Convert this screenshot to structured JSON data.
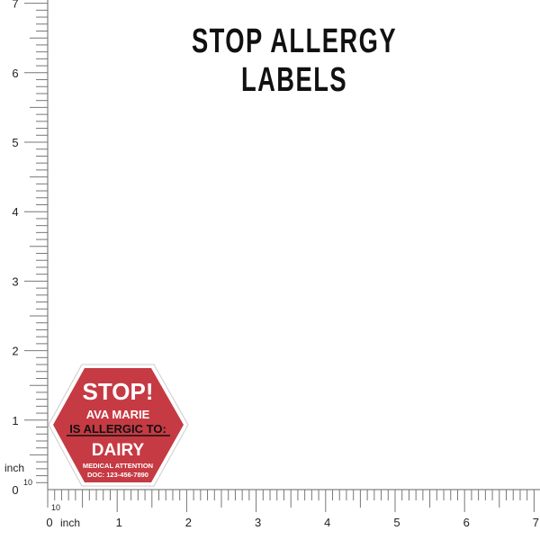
{
  "title": "STOP ALLERGY LABELS",
  "ruler": {
    "unit": "inch",
    "subdivision_label": "10",
    "x_labels": [
      "0",
      "1",
      "2",
      "3",
      "4",
      "5",
      "6",
      "7"
    ],
    "y_labels": [
      "0",
      "1",
      "2",
      "3",
      "4",
      "5",
      "6",
      "7"
    ]
  },
  "label": {
    "shape": "hexagon",
    "color": "#c63a43",
    "heading": "STOP!",
    "name": "AVA MARIE",
    "allergic_text": "IS ALLERGIC TO:",
    "allergen": "DAIRY",
    "footer_line1": "MEDICAL ATTENTION",
    "footer_line2": "DOC: 123-456-7890"
  }
}
